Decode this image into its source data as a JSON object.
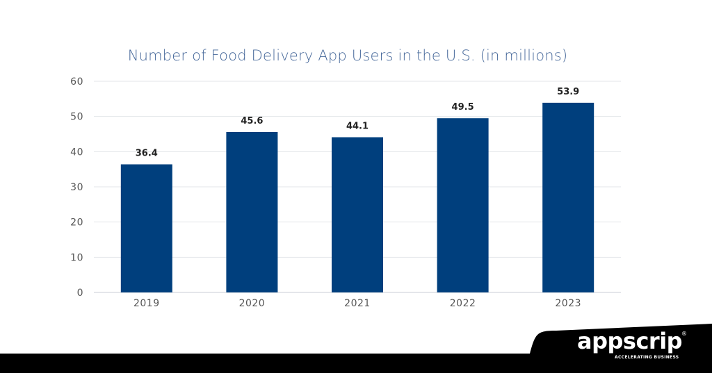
{
  "chart_data": {
    "type": "bar",
    "title": "Number of Food Delivery App Users in the U.S. (in millions)",
    "categories": [
      "2019",
      "2020",
      "2021",
      "2022",
      "2023"
    ],
    "values": [
      36.4,
      45.6,
      44.1,
      49.5,
      53.9
    ],
    "data_labels": [
      "36.4",
      "45.6",
      "44.1",
      "49.5",
      "53.9"
    ],
    "y_ticks": [
      "0",
      "10",
      "20",
      "30",
      "40",
      "50",
      "60"
    ],
    "ylim": [
      0,
      60
    ],
    "grid": true,
    "legend": "none",
    "colors": {
      "bar": "#003f7d",
      "grid": "#e3e6ea",
      "axis": "#c9ced6",
      "title": "#46689a"
    }
  },
  "branding": {
    "name": "appscrip",
    "registered_mark": "®",
    "tagline": "ACCELERATING BUSINESS"
  }
}
